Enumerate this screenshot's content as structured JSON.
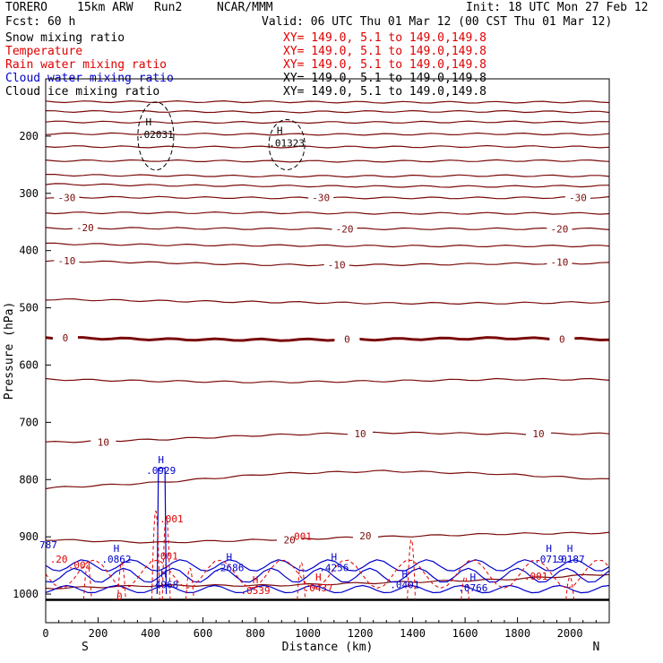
{
  "header": {
    "model": "TORERO 15km ARW Run2 NCAR/MMM",
    "model_parts": [
      "TORERO",
      "15km ARW",
      "Run2",
      "NCAR/MMM"
    ],
    "init": "Init: 18 UTC Mon 27 Feb 12",
    "fcst": "Fcst: 60 h",
    "valid": "Valid: 06 UTC Thu 01 Mar 12 (00 CST Thu 01 Mar 12)"
  },
  "legend": [
    {
      "label": "Snow mixing ratio",
      "xy": "",
      "color": "#000000"
    },
    {
      "label": "Temperature",
      "xy": "XY= 149.0, 5.1 to 149.0,149.8",
      "color": "#e00000"
    },
    {
      "label": "Rain water mixing ratio",
      "xy": "XY= 149.0, 5.1 to 149.0,149.8",
      "color": "#e00000"
    },
    {
      "label": "Cloud water mixing ratio",
      "xy": "XY= 149.0, 5.1 to 149.0,149.8",
      "color": "#0000cc"
    },
    {
      "label": "Cloud ice mixing ratio",
      "xy": "XY= 149.0, 5.1 to 149.0,149.8",
      "color": "#000000"
    }
  ],
  "legend_first_xy": "XY= 149.0, 5.1 to 149.0,149.8",
  "chart_data": {
    "type": "line",
    "xlabel": "Distance (km)",
    "ylabel": "Pressure (hPa)",
    "xlim": [
      0,
      2150
    ],
    "ylim": [
      1050,
      100
    ],
    "x_ticks": [
      0,
      200,
      400,
      600,
      800,
      1000,
      1200,
      1400,
      1600,
      1800,
      2000
    ],
    "y_ticks": [
      200,
      300,
      400,
      500,
      600,
      700,
      800,
      900,
      1000
    ],
    "x_end_labels": {
      "left": "S",
      "right": "N"
    },
    "temperature_contour_labels": [
      {
        "value": "-30",
        "x": 80,
        "p": 307
      },
      {
        "value": "-30",
        "x": 1050,
        "p": 307
      },
      {
        "value": "-30",
        "x": 2030,
        "p": 307
      },
      {
        "value": "-20",
        "x": 150,
        "p": 360
      },
      {
        "value": "-20",
        "x": 1140,
        "p": 362
      },
      {
        "value": "-20",
        "x": 1960,
        "p": 362
      },
      {
        "value": "-10",
        "x": 80,
        "p": 418
      },
      {
        "value": "-10",
        "x": 1110,
        "p": 425
      },
      {
        "value": "-10",
        "x": 1960,
        "p": 420
      },
      {
        "value": "0",
        "x": 75,
        "p": 552
      },
      {
        "value": "0",
        "x": 1150,
        "p": 555
      },
      {
        "value": "0",
        "x": 1970,
        "p": 555
      },
      {
        "value": "10",
        "x": 220,
        "p": 735
      },
      {
        "value": "10",
        "x": 1200,
        "p": 720
      },
      {
        "value": "10",
        "x": 1880,
        "p": 720
      },
      {
        "value": "20",
        "x": 930,
        "p": 905
      },
      {
        "value": "20",
        "x": 1220,
        "p": 898
      }
    ],
    "snow_maxima": [
      {
        "label": "H",
        "value": ".02031",
        "x": 420,
        "p": 200
      },
      {
        "label": "H",
        "value": ".01323",
        "x": 920,
        "p": 215
      }
    ],
    "cloud_water_maxima": [
      {
        "label": "H",
        "value": ".0929",
        "x": 440,
        "p": 790
      },
      {
        "label": "H",
        "value": ".0862",
        "x": 270,
        "p": 945
      },
      {
        "label": "H",
        "value": ".2686",
        "x": 700,
        "p": 960
      },
      {
        "label": "H",
        "value": ".4256",
        "x": 1100,
        "p": 960
      },
      {
        "label": "H",
        "value": ".4968",
        "x": 450,
        "p": 990
      },
      {
        "label": "H",
        "value": ".0401",
        "x": 1370,
        "p": 990
      },
      {
        "label": "H",
        "value": ".0766",
        "x": 1630,
        "p": 995
      },
      {
        "label": "H",
        "value": ".0719",
        "x": 1920,
        "p": 945
      },
      {
        "label": "H",
        "value": ".0187",
        "x": 2000,
        "p": 945
      }
    ],
    "cloud_water_edge_labels": [
      {
        "value": "787",
        "x": 10,
        "p": 920
      }
    ],
    "rain_maxima": [
      {
        "label": "",
        "value": ".001",
        "x": 480,
        "p": 875
      },
      {
        "label": "",
        "value": ".001",
        "x": 970,
        "p": 905
      },
      {
        "label": "",
        "value": ".001",
        "x": 130,
        "p": 955
      },
      {
        "label": "",
        "value": ".001",
        "x": 460,
        "p": 940
      },
      {
        "label": "",
        "value": ".001",
        "x": 1870,
        "p": 975
      },
      {
        "label": "",
        "value": ".20",
        "x": 50,
        "p": 945
      },
      {
        "label": "",
        "value": ".0",
        "x": 270,
        "p": 1010
      },
      {
        "label": "H",
        "value": ".0539",
        "x": 800,
        "p": 1000
      },
      {
        "label": "H",
        "value": ".0437",
        "x": 1040,
        "p": 995
      }
    ],
    "series": [
      {
        "name": "Temperature",
        "color": "#7a0a0a"
      },
      {
        "name": "Rain water mixing ratio",
        "color": "#e00000"
      },
      {
        "name": "Cloud water mixing ratio",
        "color": "#0000cc"
      },
      {
        "name": "Cloud ice mixing ratio",
        "color": "#000000"
      }
    ],
    "isotherms_hPa": [
      {
        "t": -70,
        "p": [
          140,
          140,
          140,
          141,
          141,
          140
        ]
      },
      {
        "t": -65,
        "p": [
          157,
          157,
          158,
          157,
          157,
          158
        ]
      },
      {
        "t": -60,
        "p": [
          175,
          176,
          176,
          176,
          175,
          176
        ]
      },
      {
        "t": -55,
        "p": [
          196,
          196,
          197,
          197,
          196,
          197
        ]
      },
      {
        "t": -50,
        "p": [
          218,
          219,
          219,
          219,
          218,
          219
        ]
      },
      {
        "t": -45,
        "p": [
          243,
          243,
          244,
          244,
          243,
          243
        ]
      },
      {
        "t": -40,
        "p": [
          268,
          269,
          270,
          270,
          269,
          270
        ]
      },
      {
        "t": -35,
        "p": [
          284,
          286,
          287,
          288,
          288,
          287
        ]
      },
      {
        "t": -30,
        "p": [
          307,
          307,
          308,
          308,
          308,
          307
        ]
      },
      {
        "t": -25,
        "p": [
          334,
          334,
          334,
          335,
          335,
          335
        ]
      },
      {
        "t": -20,
        "p": [
          361,
          361,
          362,
          362,
          362,
          362
        ]
      },
      {
        "t": -15,
        "p": [
          388,
          390,
          391,
          392,
          392,
          392
        ]
      },
      {
        "t": -10,
        "p": [
          418,
          421,
          425,
          425,
          423,
          422
        ]
      },
      {
        "t": -5,
        "p": [
          485,
          488,
          490,
          492,
          492,
          490
        ]
      },
      {
        "t": 0,
        "p": [
          552,
          555,
          556,
          555,
          553,
          555
        ]
      },
      {
        "t": 5,
        "p": [
          625,
          628,
          630,
          628,
          625,
          625
        ]
      },
      {
        "t": 10,
        "p": [
          735,
          730,
          722,
          718,
          720,
          720
        ]
      },
      {
        "t": 15,
        "p": [
          815,
          805,
          790,
          785,
          790,
          800
        ]
      },
      {
        "t": 20,
        "p": [
          905,
          910,
          905,
          900,
          895,
          893
        ]
      },
      {
        "t": 25,
        "p": [
          990,
          985,
          985,
          980,
          975,
          965
        ]
      }
    ],
    "isotherm_x": [
      0,
      430,
      860,
      1290,
      1720,
      2150
    ]
  }
}
